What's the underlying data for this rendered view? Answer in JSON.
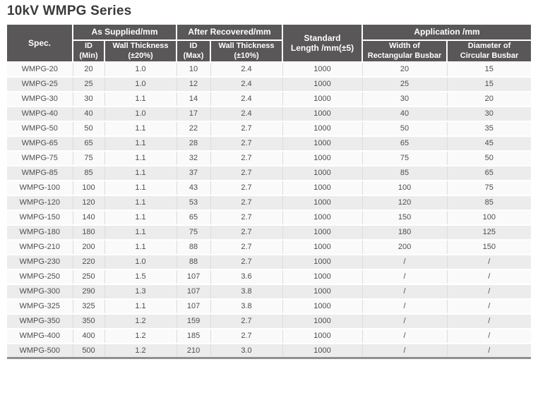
{
  "page_title": "10kV WMPG Series",
  "colors": {
    "header_bg": "#595757",
    "header_text": "#ffffff",
    "row_odd_bg": "#fafafa",
    "row_even_bg": "#ececec",
    "cell_text": "#4e4e4e",
    "title_text": "#3a3a3a",
    "grid_line": "#dcdcdc",
    "bottom_border": "#8f8f8f"
  },
  "table": {
    "header": {
      "spec_label": "Spec.",
      "as_supplied_label": "As Supplied/mm",
      "after_recovered_label": "After Recovered/mm",
      "standard_length_line1": "Standard",
      "standard_length_line2": "Length /mm(±5)",
      "application_label": "Application /mm",
      "id_min_line1": "ID",
      "id_min_line2": "(Min)",
      "wall_thickness_20_line1": "Wall Thickness",
      "wall_thickness_20_line2": "(±20%)",
      "id_max_line1": "ID",
      "id_max_line2": "(Max)",
      "wall_thickness_10_line1": "Wall Thickness",
      "wall_thickness_10_line2": "(±10%)",
      "width_busbar_line1": "Width of",
      "width_busbar_line2": "Rectangular Busbar",
      "diameter_busbar_line1": "Diameter of",
      "diameter_busbar_line2": "Circular Busbar"
    },
    "rows": [
      [
        "WMPG-20",
        "20",
        "1.0",
        "10",
        "2.4",
        "1000",
        "20",
        "15"
      ],
      [
        "WMPG-25",
        "25",
        "1.0",
        "12",
        "2.4",
        "1000",
        "25",
        "15"
      ],
      [
        "WMPG-30",
        "30",
        "1.1",
        "14",
        "2.4",
        "1000",
        "30",
        "20"
      ],
      [
        "WMPG-40",
        "40",
        "1.0",
        "17",
        "2.4",
        "1000",
        "40",
        "30"
      ],
      [
        "WMPG-50",
        "50",
        "1.1",
        "22",
        "2.7",
        "1000",
        "50",
        "35"
      ],
      [
        "WMPG-65",
        "65",
        "1.1",
        "28",
        "2.7",
        "1000",
        "65",
        "45"
      ],
      [
        "WMPG-75",
        "75",
        "1.1",
        "32",
        "2.7",
        "1000",
        "75",
        "50"
      ],
      [
        "WMPG-85",
        "85",
        "1.1",
        "37",
        "2.7",
        "1000",
        "85",
        "65"
      ],
      [
        "WMPG-100",
        "100",
        "1.1",
        "43",
        "2.7",
        "1000",
        "100",
        "75"
      ],
      [
        "WMPG-120",
        "120",
        "1.1",
        "53",
        "2.7",
        "1000",
        "120",
        "85"
      ],
      [
        "WMPG-150",
        "140",
        "1.1",
        "65",
        "2.7",
        "1000",
        "150",
        "100"
      ],
      [
        "WMPG-180",
        "180",
        "1.1",
        "75",
        "2.7",
        "1000",
        "180",
        "125"
      ],
      [
        "WMPG-210",
        "200",
        "1.1",
        "88",
        "2.7",
        "1000",
        "200",
        "150"
      ],
      [
        "WMPG-230",
        "220",
        "1.0",
        "88",
        "2.7",
        "1000",
        "/",
        "/"
      ],
      [
        "WMPG-250",
        "250",
        "1.5",
        "107",
        "3.6",
        "1000",
        "/",
        "/"
      ],
      [
        "WMPG-300",
        "290",
        "1.3",
        "107",
        "3.8",
        "1000",
        "/",
        "/"
      ],
      [
        "WMPG-325",
        "325",
        "1.1",
        "107",
        "3.8",
        "1000",
        "/",
        "/"
      ],
      [
        "WMPG-350",
        "350",
        "1.2",
        "159",
        "2.7",
        "1000",
        "/",
        "/"
      ],
      [
        "WMPG-400",
        "400",
        "1.2",
        "185",
        "2.7",
        "1000",
        "/",
        "/"
      ],
      [
        "WMPG-500",
        "500",
        "1.2",
        "210",
        "3.0",
        "1000",
        "/",
        "/"
      ]
    ]
  }
}
